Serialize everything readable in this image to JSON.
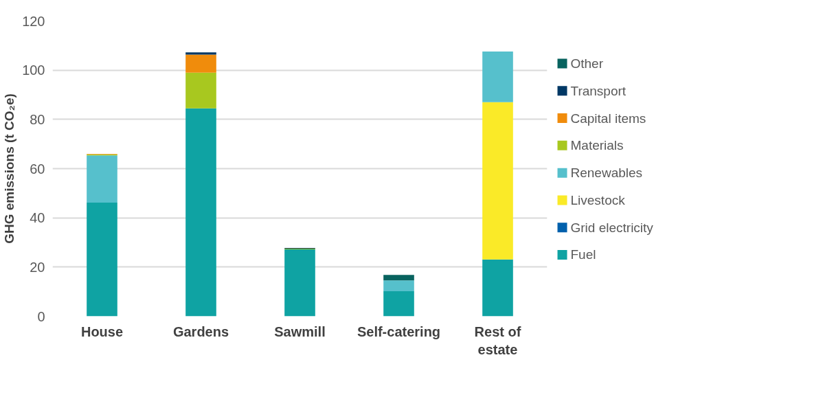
{
  "chart_data": {
    "type": "bar",
    "stacked": true,
    "ylabel": "GHG emissions (t CO₂e)",
    "categories": [
      "House",
      "Gardens",
      "Sawmill",
      "Self-catering",
      "Rest of estate"
    ],
    "series": [
      {
        "name": "Fuel",
        "color": "#0fa3a3",
        "values": [
          46.2,
          84.5,
          27.2,
          10.2,
          23.1
        ]
      },
      {
        "name": "Grid electricity",
        "color": "#0060ac",
        "values": [
          0,
          0,
          0,
          0,
          0
        ]
      },
      {
        "name": "Livestock",
        "color": "#faea28",
        "values": [
          0,
          0,
          0,
          0,
          63.9
        ]
      },
      {
        "name": "Renewables",
        "color": "#56c0cc",
        "values": [
          19.2,
          0,
          0,
          4.4,
          20.6
        ]
      },
      {
        "name": "Materials",
        "color": "#a8c81f",
        "values": [
          0.3,
          14.5,
          0.3,
          0,
          0
        ]
      },
      {
        "name": "Capital items",
        "color": "#f08c0c",
        "values": [
          0.2,
          7.3,
          0,
          0,
          0
        ]
      },
      {
        "name": "Transport",
        "color": "#003865",
        "values": [
          0,
          0.9,
          0.3,
          0,
          0
        ]
      },
      {
        "name": "Other",
        "color": "#08635f",
        "values": [
          0,
          0,
          0,
          2.2,
          0
        ]
      }
    ],
    "ylim": [
      0,
      120
    ],
    "yticks": [
      0,
      20,
      40,
      60,
      80,
      100,
      120
    ],
    "grid": "y",
    "legend": "right"
  }
}
